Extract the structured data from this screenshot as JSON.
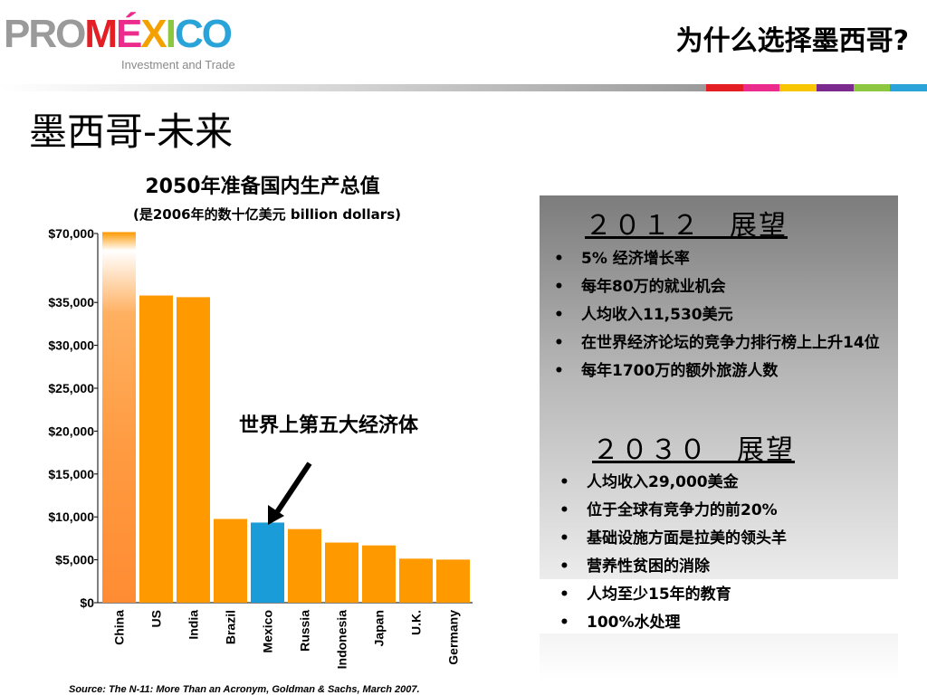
{
  "header": {
    "logo": {
      "pro": "PRO",
      "mexico_m": "M",
      "mexico_e": "É",
      "mexico_x": "X",
      "mexico_i": "I",
      "mexico_c": "C",
      "mexico_o": "O",
      "tagline": "Investment and Trade"
    },
    "title": "为什么选择墨西哥?",
    "stripe_colors": [
      "#e31e24",
      "#ec2c8c",
      "#f7c600",
      "#7c2a8e",
      "#8dc63f",
      "#29a3d8"
    ]
  },
  "slide_title": "墨西哥-未来",
  "chart_data": {
    "type": "bar",
    "title": "2050年准备国内生产总值",
    "subtitle": "(是2006年的数十亿美元 billion dollars)",
    "categories": [
      "China",
      "US",
      "India",
      "Brazil",
      "Mexico",
      "Russia",
      "Indonesia",
      "Japan",
      "U.K.",
      "Germany"
    ],
    "values": [
      70710,
      38514,
      37668,
      9762,
      9340,
      8580,
      7010,
      6677,
      5133,
      5024
    ],
    "ylim": [
      0,
      70000
    ],
    "y_ticks": [
      {
        "label": "$0",
        "value": 0
      },
      {
        "label": "$5,000",
        "value": 5000
      },
      {
        "label": "$10,000",
        "value": 10000
      },
      {
        "label": "$15,000",
        "value": 15000
      },
      {
        "label": "$20,000",
        "value": 20000
      },
      {
        "label": "$25,000",
        "value": 25000
      },
      {
        "label": "$30,000",
        "value": 30000
      },
      {
        "label": "$35,000",
        "value": 35000
      },
      {
        "label": "$70,000",
        "value": 70000
      }
    ],
    "bar_color": "#ff9900",
    "highlight": {
      "category": "Mexico",
      "color": "#1a9cd8"
    },
    "annotation": "世界上第五大经济体",
    "grid": false
  },
  "source": "Source: The N-11: More Than an Acronym, Goldman & Sachs, March 2007.",
  "outlook_2012": {
    "heading": "２０１２　展望",
    "items": [
      "5% 经济增长率",
      "每年80万的就业机会",
      "人均收入11,530美元",
      "在世界经济论坛的竞争力排行榜上上升14位",
      "每年1700万的额外旅游人数"
    ]
  },
  "outlook_2030": {
    "heading": "２０３０　展望",
    "items": [
      "人均收入29,000美金",
      "位于全球有竞争力的前20%",
      "基础设施方面是拉美的领头羊",
      "营养性贫困的消除",
      "人均至少15年的教育",
      "100%水处理"
    ]
  },
  "bullet_glyph": "•"
}
